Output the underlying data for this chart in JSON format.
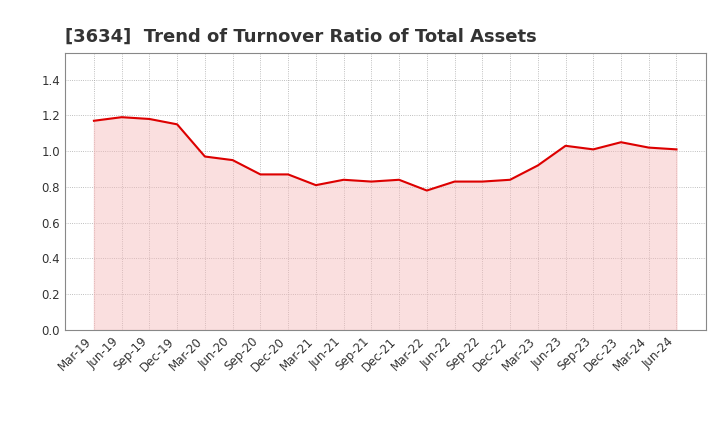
{
  "title": "[3634]  Trend of Turnover Ratio of Total Assets",
  "x_labels": [
    "Mar-19",
    "Jun-19",
    "Sep-19",
    "Dec-19",
    "Mar-20",
    "Jun-20",
    "Sep-20",
    "Dec-20",
    "Mar-21",
    "Jun-21",
    "Sep-21",
    "Dec-21",
    "Mar-22",
    "Jun-22",
    "Sep-22",
    "Dec-22",
    "Mar-23",
    "Jun-23",
    "Sep-23",
    "Dec-23",
    "Mar-24",
    "Jun-24"
  ],
  "values": [
    1.17,
    1.19,
    1.18,
    1.15,
    0.97,
    0.95,
    0.87,
    0.87,
    0.81,
    0.84,
    0.83,
    0.84,
    0.78,
    0.83,
    0.83,
    0.84,
    0.92,
    1.03,
    1.01,
    1.05,
    1.02,
    1.01
  ],
  "line_color": "#dd0000",
  "fill_color": "#f5b8b8",
  "fill_alpha": 0.45,
  "ylim": [
    0.0,
    1.55
  ],
  "yticks": [
    0.0,
    0.2,
    0.4,
    0.6,
    0.8,
    1.0,
    1.2,
    1.4
  ],
  "grid_color": "#aaaaaa",
  "background_color": "#ffffff",
  "plot_area_color": "#ffffff",
  "title_fontsize": 13,
  "tick_fontsize": 8.5,
  "title_color": "#333333",
  "spine_color": "#888888"
}
